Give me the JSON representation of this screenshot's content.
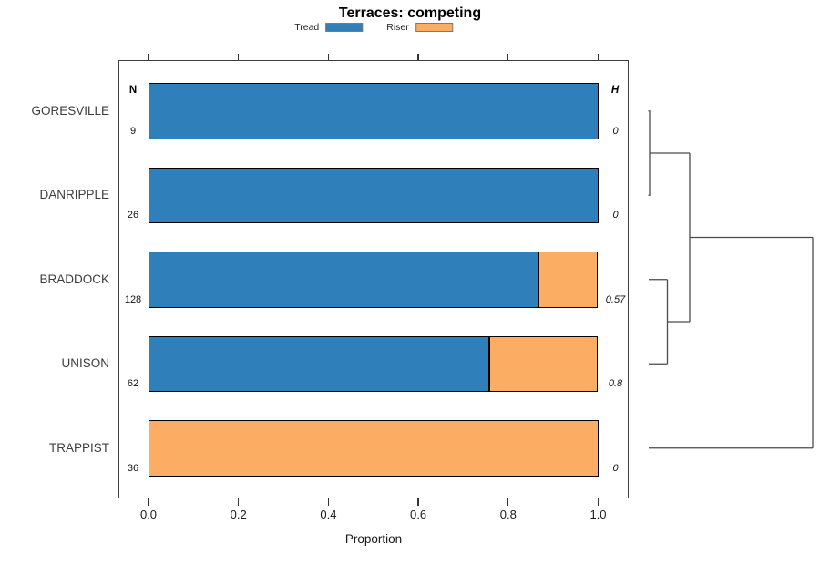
{
  "title": "Terraces: competing",
  "legend": {
    "items": [
      {
        "label": "Tread",
        "color": "#2F80BA"
      },
      {
        "label": "Riser",
        "color": "#FBAD63"
      }
    ]
  },
  "columns": {
    "n_header": "N",
    "h_header": "H"
  },
  "xaxis": {
    "label": "Proportion",
    "ticks": [
      "0.0",
      "0.2",
      "0.4",
      "0.6",
      "0.8",
      "1.0"
    ]
  },
  "chart_data": {
    "type": "bar",
    "subtype": "stacked-horizontal-proportion",
    "title": "Terraces: competing",
    "xlabel": "Proportion",
    "xlim": [
      0,
      1
    ],
    "grid": false,
    "legend_position": "top",
    "categories": [
      "GORESVILLE",
      "DANRIPPLE",
      "BRADDOCK",
      "UNISON",
      "TRAPPIST"
    ],
    "n_values": [
      "9",
      "26",
      "128",
      "62",
      "36"
    ],
    "h_values": [
      "0",
      "0",
      "0.57",
      "0.8",
      "0"
    ],
    "series": [
      {
        "name": "Tread",
        "color": "#2F80BA",
        "values": [
          1.0,
          1.0,
          0.867,
          0.758,
          0.0
        ]
      },
      {
        "name": "Riser",
        "color": "#FBAD63",
        "values": [
          0.0,
          0.0,
          0.133,
          0.242,
          1.0
        ]
      }
    ],
    "dendrogram": {
      "position": "right",
      "orientation": "leaves-left-root-right",
      "merges": [
        {
          "pair": [
            "GORESVILLE",
            "DANRIPPLE"
          ],
          "relative_height": 0.24
        },
        {
          "pair": [
            "BRADDOCK",
            "UNISON"
          ],
          "relative_height": 0.11
        },
        {
          "pair": [
            "GORESVILLE+DANRIPPLE",
            "BRADDOCK+UNISON"
          ],
          "relative_height": 0.25
        },
        {
          "pair": [
            "ALL-ABOVE",
            "TRAPPIST"
          ],
          "relative_height": 1.0
        }
      ]
    }
  }
}
